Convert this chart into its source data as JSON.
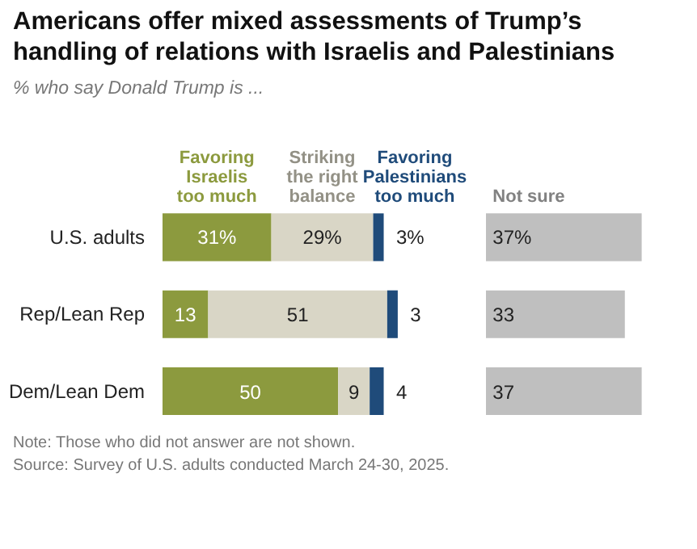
{
  "chart_data": [
    {
      "type": "bar",
      "orientation": "horizontal",
      "stacked": true,
      "title": "Americans offer mixed assessments of Trump’s handling of relations with Israelis and Palestinians",
      "subtitle": "% who say Donald Trump is ...",
      "categories": [
        "U.S. adults",
        "Rep/Lean Rep",
        "Dem/Lean Dem"
      ],
      "tick_labels": "y",
      "annotations": [
        "Note: Those who did not answer are not shown.",
        "Source: Survey of U.S. adults conducted March 24-30, 2025."
      ],
      "series": [
        {
          "name": "Favoring Israelis too much",
          "color": "#8c9a3e",
          "values": [
            31,
            13,
            50
          ],
          "value_labels": [
            "31%",
            "13",
            "50"
          ]
        },
        {
          "name": "Striking the right balance",
          "color": "#d9d6c6",
          "values": [
            29,
            51,
            9
          ],
          "value_labels": [
            "29%",
            "51",
            "9"
          ]
        },
        {
          "name": "Favoring Palestinians too much",
          "color": "#1f4b7a",
          "values": [
            3,
            3,
            4
          ],
          "value_labels": [
            "3%",
            "3",
            "4"
          ]
        }
      ]
    },
    {
      "type": "bar",
      "orientation": "horizontal",
      "categories": [
        "U.S. adults",
        "Rep/Lean Rep",
        "Dem/Lean Dem"
      ],
      "tick_labels": false,
      "series": [
        {
          "name": "Not sure",
          "color": "#bfbfbf",
          "values": [
            37,
            33,
            37
          ],
          "value_labels": [
            "37%",
            "33",
            "37"
          ]
        }
      ]
    }
  ]
}
